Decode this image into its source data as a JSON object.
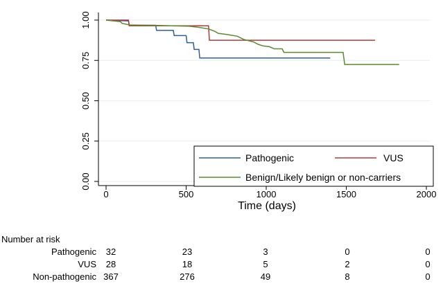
{
  "chart_data": {
    "type": "line",
    "subtype": "kaplan-meier",
    "title": "",
    "xlabel": "Time (days)",
    "ylabel": "",
    "xlim": [
      0,
      2000
    ],
    "ylim": [
      0,
      1
    ],
    "x_ticks": [
      "0",
      "500",
      "1000",
      "1500",
      "2000"
    ],
    "y_ticks": [
      "0.00",
      "0.25",
      "0.50",
      "0.75",
      "1.00"
    ],
    "grid": "horizontal",
    "legend_placement": "bottom-right",
    "series": [
      {
        "name": "Pathogenic",
        "color": "#2d5f9a",
        "points": [
          [
            0,
            1.0
          ],
          [
            140,
            0.995
          ],
          [
            145,
            0.968
          ],
          [
            310,
            0.968
          ],
          [
            315,
            0.936
          ],
          [
            420,
            0.936
          ],
          [
            425,
            0.904
          ],
          [
            500,
            0.904
          ],
          [
            505,
            0.86
          ],
          [
            545,
            0.86
          ],
          [
            550,
            0.818
          ],
          [
            580,
            0.818
          ],
          [
            585,
            0.765
          ],
          [
            1400,
            0.765
          ]
        ]
      },
      {
        "name": "VUS",
        "color": "#b33a3a",
        "points": [
          [
            0,
            1.0
          ],
          [
            140,
            1.0
          ],
          [
            145,
            0.965
          ],
          [
            640,
            0.965
          ],
          [
            645,
            0.875
          ],
          [
            1680,
            0.875
          ]
        ]
      },
      {
        "name": "Benign/Likely benign or non-carriers",
        "color": "#5a8a2e",
        "points": [
          [
            0,
            1.0
          ],
          [
            90,
            0.99
          ],
          [
            100,
            0.98
          ],
          [
            145,
            0.97
          ],
          [
            350,
            0.966
          ],
          [
            520,
            0.962
          ],
          [
            580,
            0.955
          ],
          [
            640,
            0.945
          ],
          [
            680,
            0.93
          ],
          [
            700,
            0.918
          ],
          [
            760,
            0.91
          ],
          [
            820,
            0.9
          ],
          [
            860,
            0.88
          ],
          [
            920,
            0.865
          ],
          [
            950,
            0.85
          ],
          [
            980,
            0.84
          ],
          [
            1020,
            0.835
          ],
          [
            1050,
            0.822
          ],
          [
            1100,
            0.822
          ],
          [
            1110,
            0.8
          ],
          [
            1480,
            0.8
          ],
          [
            1490,
            0.725
          ],
          [
            1830,
            0.725
          ]
        ]
      }
    ]
  },
  "risk_table": {
    "title": "Number at risk",
    "rows": [
      {
        "label": "Pathogenic",
        "values": [
          "32",
          "23",
          "3",
          "0",
          "0"
        ]
      },
      {
        "label": "VUS",
        "values": [
          "28",
          "18",
          "5",
          "2",
          "0"
        ]
      },
      {
        "label": "Non-pathogenic",
        "values": [
          "367",
          "276",
          "49",
          "8",
          "0"
        ]
      }
    ]
  }
}
